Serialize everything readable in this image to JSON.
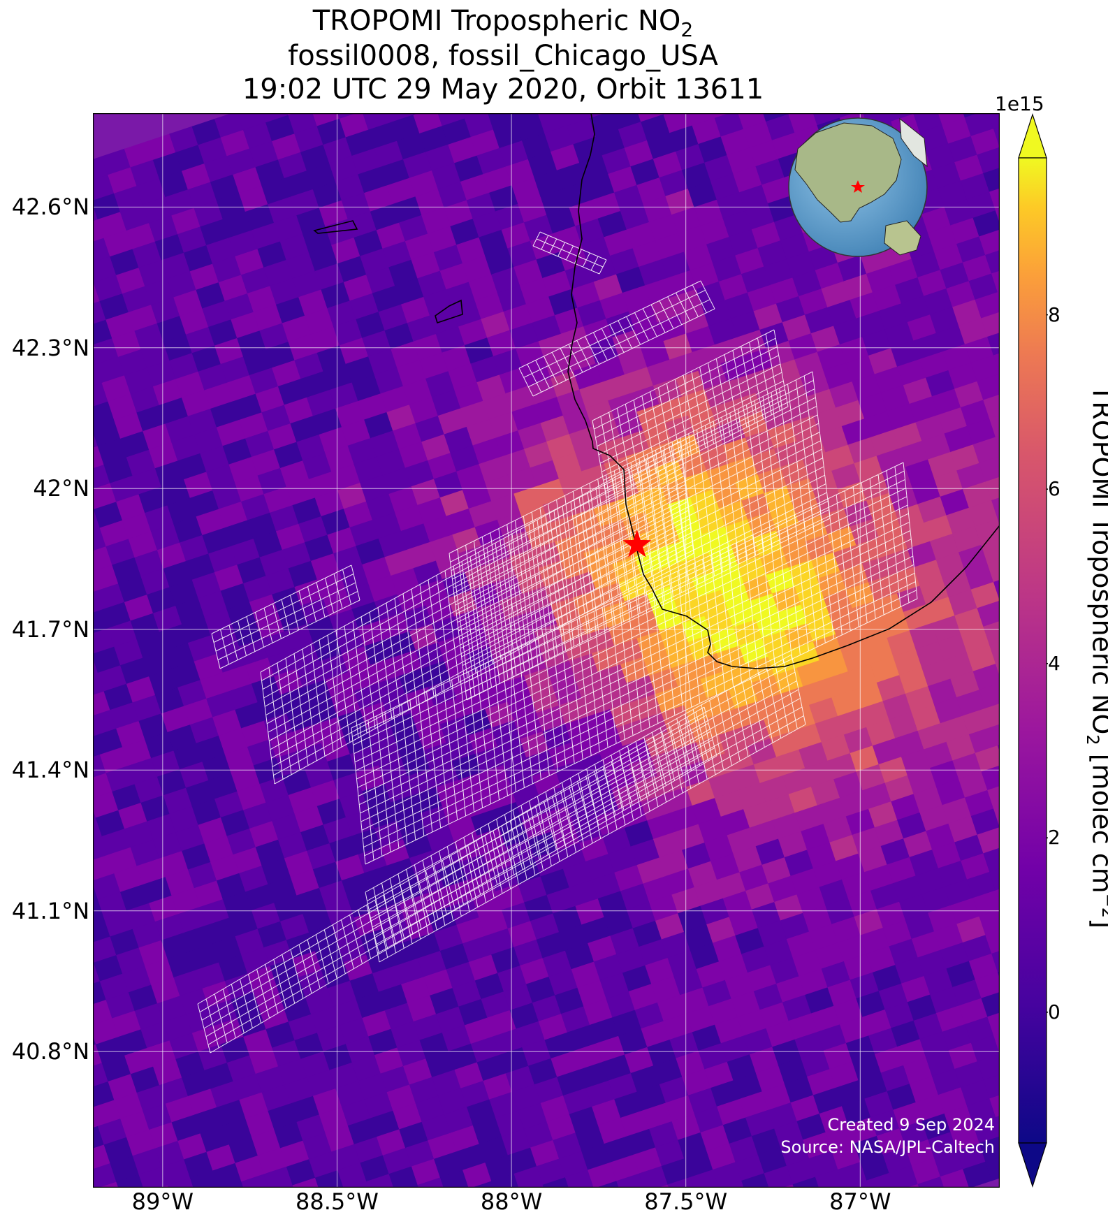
{
  "title": {
    "line1_prefix": "TROPOMI Tropospheric NO",
    "line1_sub": "2",
    "line2": "fossil0008, fossil_Chicago_USA",
    "line3": "19:02 UTC 29 May 2020, Orbit 13611"
  },
  "map": {
    "lon_range": [
      -89.2,
      -86.6
    ],
    "lat_range": [
      40.51,
      42.8
    ],
    "lat_ticks": [
      {
        "value": 42.6,
        "label": "42.6°N"
      },
      {
        "value": 42.3,
        "label": "42.3°N"
      },
      {
        "value": 42.0,
        "label": "42°N"
      },
      {
        "value": 41.7,
        "label": "41.7°N"
      },
      {
        "value": 41.4,
        "label": "41.4°N"
      },
      {
        "value": 41.1,
        "label": "41.1°N"
      },
      {
        "value": 40.8,
        "label": "40.8°N"
      }
    ],
    "lon_ticks": [
      {
        "value": -89.0,
        "label": "89°W"
      },
      {
        "value": -88.5,
        "label": "88.5°W"
      },
      {
        "value": -88.0,
        "label": "88°W"
      },
      {
        "value": -87.5,
        "label": "87.5°W"
      },
      {
        "value": -87.0,
        "label": "87°W"
      }
    ],
    "target": {
      "name": "fossil_Chicago_USA",
      "lon": -87.64,
      "lat": 41.88,
      "marker": "red-star"
    },
    "background_color": "#7a19a8",
    "colormap": "plasma"
  },
  "colorbar": {
    "exponent_label": "1e15",
    "title_prefix": "TROPOMI Tropospheric NO",
    "title_sub": "2",
    "title_mid": " [molec cm",
    "title_sup": "−2",
    "title_suffix": "]",
    "range": [
      -1.5,
      9.8
    ],
    "ticks": [
      {
        "value": 0,
        "label": "0"
      },
      {
        "value": 2,
        "label": "2"
      },
      {
        "value": 4,
        "label": "4"
      },
      {
        "value": 6,
        "label": "6"
      },
      {
        "value": 8,
        "label": "8"
      }
    ],
    "extend": "both"
  },
  "credits": {
    "created": "Created 9 Sep 2024",
    "source": "Source: NASA/JPL-Caltech"
  }
}
